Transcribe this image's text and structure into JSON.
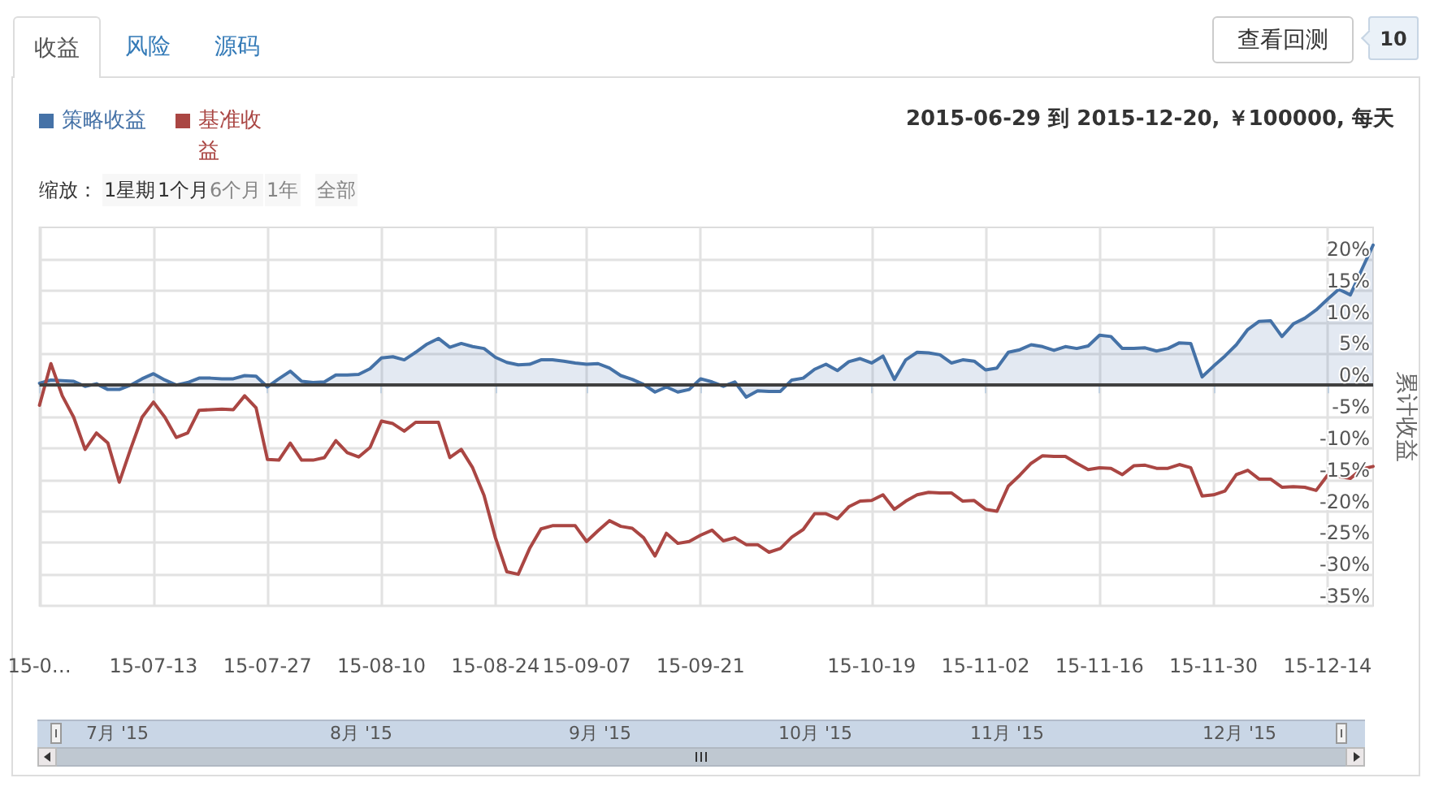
{
  "chart_data": {
    "type": "line",
    "subtitle": "2015-06-29 到 2015-12-20, ￥100000, 每天",
    "ylabel": "累计收益",
    "categories": [
      "15-0…",
      null,
      null,
      null,
      null,
      null,
      null,
      null,
      null,
      null,
      "15-07-13",
      null,
      null,
      null,
      null,
      null,
      null,
      null,
      null,
      null,
      "15-07-27",
      null,
      null,
      null,
      null,
      null,
      null,
      null,
      null,
      null,
      "15-08-10",
      null,
      null,
      null,
      null,
      null,
      null,
      null,
      null,
      null,
      "15-08-24",
      null,
      null,
      null,
      null,
      null,
      null,
      null,
      "15-09-07",
      null,
      null,
      null,
      null,
      null,
      null,
      null,
      null,
      null,
      "15-09-21",
      null,
      null,
      null,
      null,
      null,
      null,
      null,
      null,
      null,
      null,
      null,
      null,
      null,
      null,
      "15-10-19",
      null,
      null,
      null,
      null,
      null,
      null,
      null,
      null,
      null,
      "15-11-02",
      null,
      null,
      null,
      null,
      null,
      null,
      null,
      null,
      null,
      "15-11-16",
      null,
      null,
      null,
      null,
      null,
      null,
      null,
      null,
      null,
      "15-11-30",
      null,
      null,
      null,
      null,
      null,
      null,
      null,
      null,
      null,
      "15-12-14",
      null,
      null,
      null,
      null
    ],
    "series": [
      {
        "name": "策略收益",
        "type": "area",
        "color": "#4572a7",
        "values": [
          0.3,
          0.8,
          0.7,
          0.6,
          -0.2,
          0.2,
          -0.7,
          -0.7,
          0.0,
          1.0,
          1.8,
          0.8,
          0.0,
          0.4,
          1.1,
          1.1,
          1.0,
          1.0,
          1.5,
          1.4,
          -0.3,
          1.0,
          2.2,
          0.6,
          0.4,
          0.5,
          1.6,
          1.6,
          1.7,
          2.6,
          4.3,
          4.5,
          4.0,
          5.2,
          6.5,
          7.4,
          6.0,
          6.6,
          6.1,
          5.8,
          4.4,
          3.6,
          3.2,
          3.3,
          4.0,
          4.0,
          3.8,
          3.5,
          3.3,
          3.4,
          2.7,
          1.5,
          0.9,
          0.1,
          -1.1,
          -0.3,
          -1.1,
          -0.7,
          1.0,
          0.5,
          -0.2,
          0.5,
          -1.9,
          -0.9,
          -1.0,
          -1.0,
          0.8,
          1.1,
          2.5,
          3.3,
          2.3,
          3.7,
          4.2,
          3.5,
          4.6,
          0.9,
          4.0,
          5.2,
          5.1,
          4.8,
          3.5,
          4.0,
          3.8,
          2.4,
          2.7,
          5.2,
          5.6,
          6.4,
          6.1,
          5.5,
          6.1,
          5.8,
          6.2,
          7.9,
          7.7,
          5.8,
          5.8,
          5.9,
          5.4,
          5.8,
          6.7,
          6.6,
          1.3,
          3.0,
          4.6,
          6.4,
          8.8,
          10.1,
          10.2,
          7.7,
          9.7,
          10.6,
          11.9,
          13.6,
          15.2,
          14.3,
          18.3,
          22.2
        ]
      },
      {
        "name": "基准收益",
        "type": "line",
        "color": "#aa4643",
        "values": [
          -3.2,
          3.4,
          -1.7,
          -5.1,
          -10.2,
          -7.6,
          -9.2,
          -15.4,
          -10.1,
          -5.1,
          -2.7,
          -5.1,
          -8.3,
          -7.6,
          -4.0,
          -3.9,
          -3.8,
          -3.9,
          -1.7,
          -3.6,
          -11.8,
          -11.9,
          -9.2,
          -11.9,
          -11.9,
          -11.5,
          -8.8,
          -10.7,
          -11.4,
          -9.9,
          -5.7,
          -6.1,
          -7.3,
          -5.9,
          -5.9,
          -5.9,
          -11.5,
          -10.2,
          -13.1,
          -17.5,
          -24.2,
          -29.6,
          -30.0,
          -25.9,
          -22.8,
          -22.3,
          -22.3,
          -22.3,
          -24.8,
          -23.1,
          -21.5,
          -22.4,
          -22.7,
          -24.2,
          -27.1,
          -23.5,
          -25.1,
          -24.8,
          -23.8,
          -23.0,
          -24.7,
          -24.2,
          -25.3,
          -25.3,
          -26.5,
          -25.9,
          -24.1,
          -22.9,
          -20.4,
          -20.4,
          -21.2,
          -19.3,
          -18.4,
          -18.3,
          -17.4,
          -19.7,
          -18.4,
          -17.4,
          -17.0,
          -17.1,
          -17.1,
          -18.4,
          -18.3,
          -19.7,
          -20.0,
          -16.0,
          -14.3,
          -12.4,
          -11.2,
          -11.3,
          -11.3,
          -12.4,
          -13.4,
          -13.1,
          -13.2,
          -14.2,
          -12.8,
          -12.7,
          -13.2,
          -13.2,
          -12.6,
          -13.1,
          -17.6,
          -17.4,
          -16.8,
          -14.2,
          -13.5,
          -14.9,
          -14.9,
          -16.2,
          -16.1,
          -16.2,
          -16.7,
          -14.3,
          -14.5,
          -14.8,
          -13.3,
          -12.9
        ]
      }
    ],
    "ylim": [
      -35,
      25
    ],
    "yticks": [
      {
        "value": -35,
        "label": "-35%"
      },
      {
        "value": -30,
        "label": "-30%"
      },
      {
        "value": -25,
        "label": "-25%"
      },
      {
        "value": -20,
        "label": "-20%"
      },
      {
        "value": -15,
        "label": "-15%"
      },
      {
        "value": -10,
        "label": "-10%"
      },
      {
        "value": -5,
        "label": "-5%"
      },
      {
        "value": 0,
        "label": "0%"
      },
      {
        "value": 5,
        "label": "5%"
      },
      {
        "value": 10,
        "label": "10%"
      },
      {
        "value": 15,
        "label": "15%"
      },
      {
        "value": 20,
        "label": "20%"
      }
    ],
    "ref_lines": [
      {
        "axis": "y",
        "value": 0,
        "color": "#404040"
      }
    ],
    "grid": true,
    "legend": "top left",
    "marker": "none",
    "annotations": [
      "收益",
      "风险",
      "源码",
      "查看回测",
      "10",
      "缩放：",
      "1星期",
      "1个月",
      "6个月",
      "1年",
      "全部",
      "7月 '15",
      "8月 '15",
      "9月 '15",
      "10月 '15",
      "11月 '15",
      "12月 '15"
    ]
  }
}
